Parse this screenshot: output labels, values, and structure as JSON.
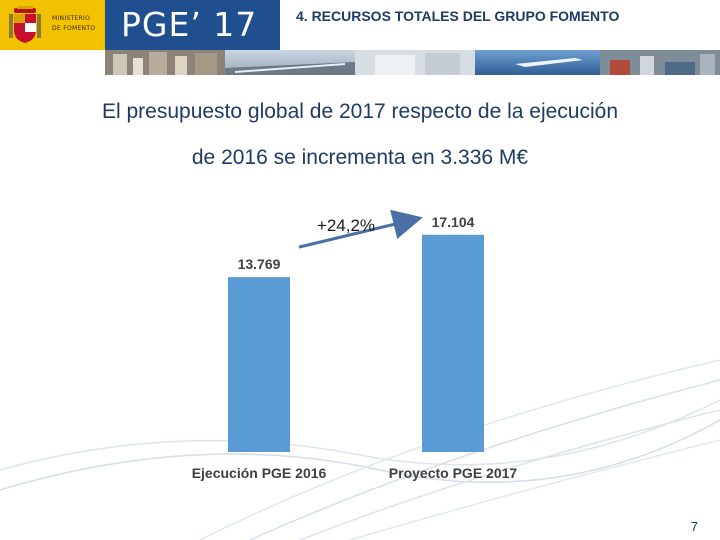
{
  "header": {
    "ministry_line1": "MINISTERIO",
    "ministry_line2": "DE FOMENTO",
    "pge_label": "PGE’ 17",
    "section_title": "4. RECURSOS TOTALES DEL GRUPO FOMENTO"
  },
  "headline": {
    "line1": "El presupuesto global de 2017 respecto de la ejecución",
    "line2": "de 2016  se incrementa en 3.336 M€"
  },
  "chart_data": {
    "type": "bar",
    "categories": [
      "Ejecución PGE 2016",
      "Proyecto PGE 2017"
    ],
    "values": [
      13769,
      17104
    ],
    "value_labels": [
      "13.769",
      "17.104"
    ],
    "annotation": "+24,2%",
    "ylim": [
      0,
      20000
    ],
    "bar_color": "#5b9bd5",
    "grid": false
  },
  "footer": {
    "page_number": "7"
  },
  "colors": {
    "logo_bg": "#f2c100",
    "pge_bg": "#1f4f8f",
    "title_text": "#1f3a66",
    "arrow": "#4a6fa5"
  }
}
